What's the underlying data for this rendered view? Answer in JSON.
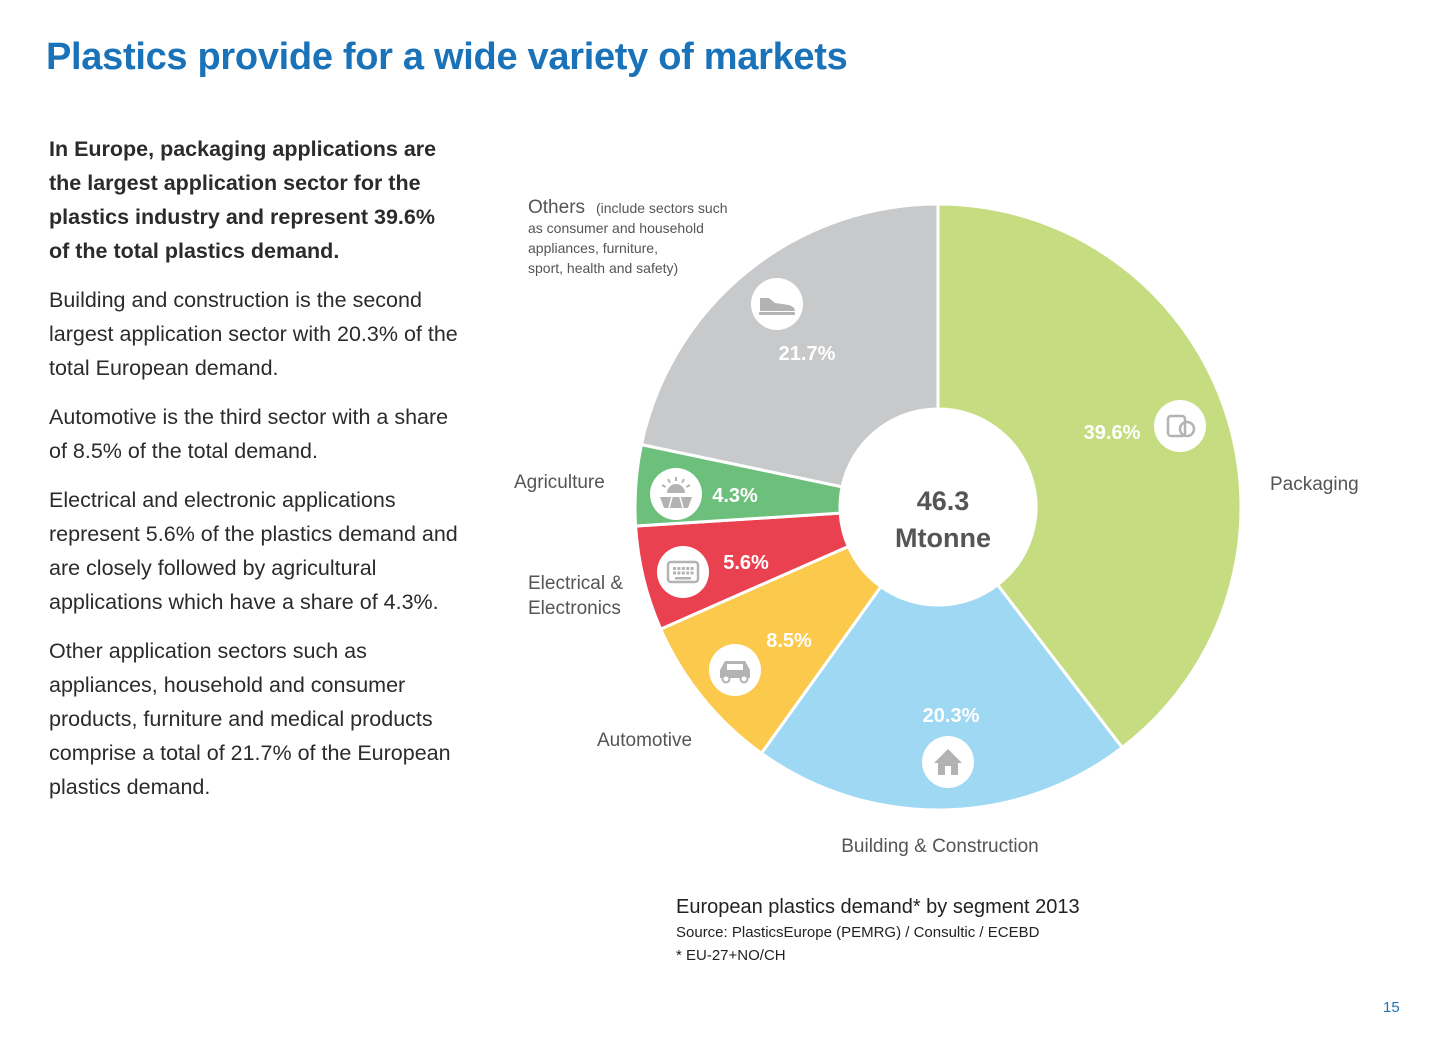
{
  "page": {
    "title": "Plastics provide for a wide variety of markets",
    "paragraphs": [
      "In Europe, packaging applications are the largest application sector for the plastics industry and represent 39.6% of the total plastics demand.",
      "Building and construction is the second largest application sector with 20.3% of the total European demand.",
      "Automotive is the third sector with a share of 8.5% of the total demand.",
      "Electrical and electronic applications represent 5.6% of the plastics demand and are closely followed by agricultural applications which have a share of 4.3%.",
      "Other application sectors such as appliances, household and consumer products, furniture and medical products comprise a total of 21.7% of the European plastics demand."
    ],
    "page_number": "15"
  },
  "chart_data": {
    "type": "pie",
    "style": "donut",
    "center_value": "46.3",
    "center_unit": "Mtonne",
    "caption": "European plastics demand* by segment 2013",
    "source": "Source: PlasticsEurope (PEMRG) / Consultic / ECEBD",
    "footnote": "* EU-27+NO/CH",
    "others_note": [
      "(include sectors such",
      "as consumer and household",
      "appliances, furniture,",
      "sport, health and safety)"
    ],
    "slices": [
      {
        "label": "Packaging",
        "value": 39.6,
        "value_label": "39.6%",
        "color": "#c5dc80",
        "icon": "packaging-icon"
      },
      {
        "label": "Building & Construction",
        "value": 20.3,
        "value_label": "20.3%",
        "color": "#9fd8f2",
        "icon": "house-icon"
      },
      {
        "label": "Automotive",
        "value": 8.5,
        "value_label": "8.5%",
        "color": "#fbc94c",
        "icon": "car-icon"
      },
      {
        "label": "Electrical & Electronics",
        "label_lines": [
          "Electrical &",
          "Electronics"
        ],
        "value": 5.6,
        "value_label": "5.6%",
        "color": "#e9414f",
        "icon": "keyboard-icon"
      },
      {
        "label": "Agriculture",
        "value": 4.3,
        "value_label": "4.3%",
        "color": "#6dbf7c",
        "icon": "sun-field-icon"
      },
      {
        "label": "Others",
        "value": 21.7,
        "value_label": "21.7%",
        "color": "#c8c9cb",
        "icon": "shoe-icon"
      }
    ]
  }
}
